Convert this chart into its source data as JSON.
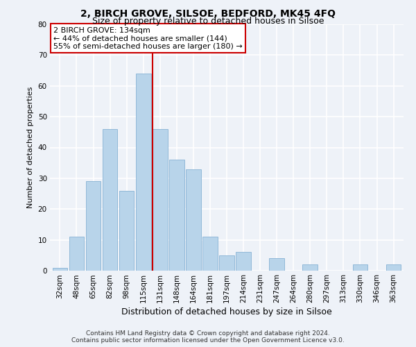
{
  "title": "2, BIRCH GROVE, SILSOE, BEDFORD, MK45 4FQ",
  "subtitle": "Size of property relative to detached houses in Silsoe",
  "xlabel": "Distribution of detached houses by size in Silsoe",
  "ylabel": "Number of detached properties",
  "categories": [
    "32sqm",
    "48sqm",
    "65sqm",
    "82sqm",
    "98sqm",
    "115sqm",
    "131sqm",
    "148sqm",
    "164sqm",
    "181sqm",
    "197sqm",
    "214sqm",
    "231sqm",
    "247sqm",
    "264sqm",
    "280sqm",
    "297sqm",
    "313sqm",
    "330sqm",
    "346sqm",
    "363sqm"
  ],
  "values": [
    1,
    11,
    29,
    46,
    26,
    64,
    46,
    36,
    33,
    11,
    5,
    6,
    0,
    4,
    0,
    2,
    0,
    0,
    2,
    0,
    2
  ],
  "bar_color": "#b8d4ea",
  "bar_edge_color": "#90b8d8",
  "vline_index": 6,
  "vline_color": "#cc0000",
  "annotation_title": "2 BIRCH GROVE: 134sqm",
  "annotation_line1": "← 44% of detached houses are smaller (144)",
  "annotation_line2": "55% of semi-detached houses are larger (180) →",
  "annotation_box_facecolor": "#ffffff",
  "annotation_box_edgecolor": "#cc0000",
  "footer_line1": "Contains HM Land Registry data © Crown copyright and database right 2024.",
  "footer_line2": "Contains public sector information licensed under the Open Government Licence v3.0.",
  "ylim": [
    0,
    80
  ],
  "yticks": [
    0,
    10,
    20,
    30,
    40,
    50,
    60,
    70,
    80
  ],
  "background_color": "#eef2f8",
  "grid_color": "#ffffff",
  "title_fontsize": 10,
  "subtitle_fontsize": 9,
  "xlabel_fontsize": 9,
  "ylabel_fontsize": 8,
  "tick_fontsize": 7.5,
  "footer_fontsize": 6.5
}
